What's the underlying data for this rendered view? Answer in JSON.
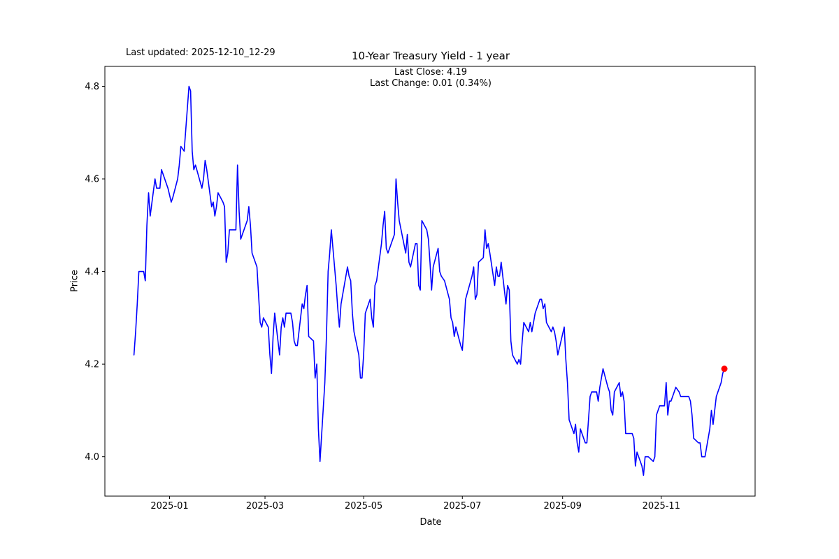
{
  "header": {
    "last_updated": "Last updated: 2025-12-10_12-29",
    "title": "10-Year Treasury Yield - 1 year",
    "subtitle_line1": "Last Close: 4.19",
    "subtitle_line2": "Last Change: 0.01 (0.34%)"
  },
  "chart_data": {
    "type": "line",
    "title": "10-Year Treasury Yield - 1 year",
    "xlabel": "Date",
    "ylabel": "Price",
    "legend": "none",
    "grid": false,
    "line_color": "#0000ff",
    "marker_color": "#ff0000",
    "spine_color": "#000000",
    "ylim": [
      3.915,
      4.843
    ],
    "xlim": [
      "2024-11-22",
      "2025-12-29"
    ],
    "yticks": [
      {
        "label": "4.0",
        "value": 4.0
      },
      {
        "label": "4.2",
        "value": 4.2
      },
      {
        "label": "4.4",
        "value": 4.4
      },
      {
        "label": "4.6",
        "value": 4.6
      },
      {
        "label": "4.8",
        "value": 4.8
      }
    ],
    "xticks": [
      {
        "label": "2025-01",
        "date": "2025-01-01"
      },
      {
        "label": "2025-03",
        "date": "2025-03-01"
      },
      {
        "label": "2025-05",
        "date": "2025-05-01"
      },
      {
        "label": "2025-07",
        "date": "2025-07-01"
      },
      {
        "label": "2025-09",
        "date": "2025-09-01"
      },
      {
        "label": "2025-11",
        "date": "2025-11-01"
      }
    ],
    "last_point": {
      "date": "2025-12-10",
      "value": 4.19
    },
    "series": [
      {
        "name": "10-Year Treasury Yield",
        "points": [
          [
            "2024-12-10",
            4.22
          ],
          [
            "2024-12-11",
            4.27
          ],
          [
            "2024-12-12",
            4.33
          ],
          [
            "2024-12-13",
            4.4
          ],
          [
            "2024-12-16",
            4.4
          ],
          [
            "2024-12-17",
            4.38
          ],
          [
            "2024-12-18",
            4.5
          ],
          [
            "2024-12-19",
            4.57
          ],
          [
            "2024-12-20",
            4.52
          ],
          [
            "2024-12-23",
            4.6
          ],
          [
            "2024-12-24",
            4.58
          ],
          [
            "2024-12-26",
            4.58
          ],
          [
            "2024-12-27",
            4.62
          ],
          [
            "2024-12-30",
            4.59
          ],
          [
            "2024-12-31",
            4.58
          ],
          [
            "2025-01-02",
            4.55
          ],
          [
            "2025-01-03",
            4.56
          ],
          [
            "2025-01-06",
            4.6
          ],
          [
            "2025-01-07",
            4.63
          ],
          [
            "2025-01-08",
            4.67
          ],
          [
            "2025-01-10",
            4.66
          ],
          [
            "2025-01-13",
            4.8
          ],
          [
            "2025-01-14",
            4.79
          ],
          [
            "2025-01-15",
            4.66
          ],
          [
            "2025-01-16",
            4.62
          ],
          [
            "2025-01-17",
            4.63
          ],
          [
            "2025-01-21",
            4.58
          ],
          [
            "2025-01-22",
            4.6
          ],
          [
            "2025-01-23",
            4.64
          ],
          [
            "2025-01-24",
            4.62
          ],
          [
            "2025-01-27",
            4.54
          ],
          [
            "2025-01-28",
            4.55
          ],
          [
            "2025-01-29",
            4.52
          ],
          [
            "2025-01-30",
            4.54
          ],
          [
            "2025-01-31",
            4.57
          ],
          [
            "2025-02-03",
            4.55
          ],
          [
            "2025-02-04",
            4.54
          ],
          [
            "2025-02-05",
            4.42
          ],
          [
            "2025-02-06",
            4.44
          ],
          [
            "2025-02-07",
            4.49
          ],
          [
            "2025-02-10",
            4.49
          ],
          [
            "2025-02-11",
            4.49
          ],
          [
            "2025-02-12",
            4.63
          ],
          [
            "2025-02-13",
            4.53
          ],
          [
            "2025-02-14",
            4.47
          ],
          [
            "2025-02-18",
            4.51
          ],
          [
            "2025-02-19",
            4.54
          ],
          [
            "2025-02-20",
            4.5
          ],
          [
            "2025-02-21",
            4.44
          ],
          [
            "2025-02-24",
            4.41
          ],
          [
            "2025-02-25",
            4.35
          ],
          [
            "2025-02-26",
            4.29
          ],
          [
            "2025-02-27",
            4.28
          ],
          [
            "2025-02-28",
            4.3
          ],
          [
            "2025-03-03",
            4.28
          ],
          [
            "2025-03-04",
            4.22
          ],
          [
            "2025-03-05",
            4.18
          ],
          [
            "2025-03-06",
            4.26
          ],
          [
            "2025-03-07",
            4.31
          ],
          [
            "2025-03-10",
            4.22
          ],
          [
            "2025-03-11",
            4.28
          ],
          [
            "2025-03-12",
            4.3
          ],
          [
            "2025-03-13",
            4.28
          ],
          [
            "2025-03-14",
            4.31
          ],
          [
            "2025-03-17",
            4.31
          ],
          [
            "2025-03-18",
            4.29
          ],
          [
            "2025-03-19",
            4.25
          ],
          [
            "2025-03-20",
            4.24
          ],
          [
            "2025-03-21",
            4.24
          ],
          [
            "2025-03-24",
            4.33
          ],
          [
            "2025-03-25",
            4.32
          ],
          [
            "2025-03-26",
            4.35
          ],
          [
            "2025-03-27",
            4.37
          ],
          [
            "2025-03-28",
            4.26
          ],
          [
            "2025-03-31",
            4.25
          ],
          [
            "2025-04-01",
            4.17
          ],
          [
            "2025-04-02",
            4.2
          ],
          [
            "2025-04-03",
            4.06
          ],
          [
            "2025-04-04",
            3.99
          ],
          [
            "2025-04-07",
            4.16
          ],
          [
            "2025-04-08",
            4.26
          ],
          [
            "2025-04-09",
            4.4
          ],
          [
            "2025-04-10",
            4.44
          ],
          [
            "2025-04-11",
            4.49
          ],
          [
            "2025-04-14",
            4.37
          ],
          [
            "2025-04-15",
            4.32
          ],
          [
            "2025-04-16",
            4.28
          ],
          [
            "2025-04-17",
            4.33
          ],
          [
            "2025-04-21",
            4.41
          ],
          [
            "2025-04-22",
            4.39
          ],
          [
            "2025-04-23",
            4.38
          ],
          [
            "2025-04-24",
            4.31
          ],
          [
            "2025-04-25",
            4.27
          ],
          [
            "2025-04-28",
            4.22
          ],
          [
            "2025-04-29",
            4.17
          ],
          [
            "2025-04-30",
            4.17
          ],
          [
            "2025-05-01",
            4.22
          ],
          [
            "2025-05-02",
            4.31
          ],
          [
            "2025-05-05",
            4.34
          ],
          [
            "2025-05-06",
            4.3
          ],
          [
            "2025-05-07",
            4.28
          ],
          [
            "2025-05-08",
            4.37
          ],
          [
            "2025-05-09",
            4.38
          ],
          [
            "2025-05-12",
            4.46
          ],
          [
            "2025-05-13",
            4.5
          ],
          [
            "2025-05-14",
            4.53
          ],
          [
            "2025-05-15",
            4.45
          ],
          [
            "2025-05-16",
            4.44
          ],
          [
            "2025-05-19",
            4.47
          ],
          [
            "2025-05-20",
            4.48
          ],
          [
            "2025-05-21",
            4.6
          ],
          [
            "2025-05-22",
            4.55
          ],
          [
            "2025-05-23",
            4.51
          ],
          [
            "2025-05-27",
            4.44
          ],
          [
            "2025-05-28",
            4.48
          ],
          [
            "2025-05-29",
            4.42
          ],
          [
            "2025-05-30",
            4.41
          ],
          [
            "2025-06-02",
            4.46
          ],
          [
            "2025-06-03",
            4.46
          ],
          [
            "2025-06-04",
            4.37
          ],
          [
            "2025-06-05",
            4.36
          ],
          [
            "2025-06-06",
            4.51
          ],
          [
            "2025-06-09",
            4.49
          ],
          [
            "2025-06-10",
            4.47
          ],
          [
            "2025-06-11",
            4.42
          ],
          [
            "2025-06-12",
            4.36
          ],
          [
            "2025-06-13",
            4.41
          ],
          [
            "2025-06-16",
            4.45
          ],
          [
            "2025-06-17",
            4.4
          ],
          [
            "2025-06-18",
            4.39
          ],
          [
            "2025-06-20",
            4.38
          ],
          [
            "2025-06-23",
            4.34
          ],
          [
            "2025-06-24",
            4.3
          ],
          [
            "2025-06-25",
            4.29
          ],
          [
            "2025-06-26",
            4.26
          ],
          [
            "2025-06-27",
            4.28
          ],
          [
            "2025-06-30",
            4.24
          ],
          [
            "2025-07-01",
            4.23
          ],
          [
            "2025-07-02",
            4.28
          ],
          [
            "2025-07-03",
            4.34
          ],
          [
            "2025-07-07",
            4.39
          ],
          [
            "2025-07-08",
            4.41
          ],
          [
            "2025-07-09",
            4.34
          ],
          [
            "2025-07-10",
            4.35
          ],
          [
            "2025-07-11",
            4.42
          ],
          [
            "2025-07-14",
            4.43
          ],
          [
            "2025-07-15",
            4.49
          ],
          [
            "2025-07-16",
            4.45
          ],
          [
            "2025-07-17",
            4.46
          ],
          [
            "2025-07-18",
            4.44
          ],
          [
            "2025-07-21",
            4.37
          ],
          [
            "2025-07-22",
            4.41
          ],
          [
            "2025-07-23",
            4.39
          ],
          [
            "2025-07-24",
            4.39
          ],
          [
            "2025-07-25",
            4.42
          ],
          [
            "2025-07-28",
            4.33
          ],
          [
            "2025-07-29",
            4.37
          ],
          [
            "2025-07-30",
            4.36
          ],
          [
            "2025-07-31",
            4.25
          ],
          [
            "2025-08-01",
            4.22
          ],
          [
            "2025-08-04",
            4.2
          ],
          [
            "2025-08-05",
            4.21
          ],
          [
            "2025-08-06",
            4.2
          ],
          [
            "2025-08-07",
            4.25
          ],
          [
            "2025-08-08",
            4.29
          ],
          [
            "2025-08-11",
            4.27
          ],
          [
            "2025-08-12",
            4.29
          ],
          [
            "2025-08-13",
            4.27
          ],
          [
            "2025-08-14",
            4.29
          ],
          [
            "2025-08-15",
            4.31
          ],
          [
            "2025-08-18",
            4.34
          ],
          [
            "2025-08-19",
            4.34
          ],
          [
            "2025-08-20",
            4.32
          ],
          [
            "2025-08-21",
            4.33
          ],
          [
            "2025-08-22",
            4.29
          ],
          [
            "2025-08-25",
            4.27
          ],
          [
            "2025-08-26",
            4.28
          ],
          [
            "2025-08-27",
            4.27
          ],
          [
            "2025-08-28",
            4.25
          ],
          [
            "2025-08-29",
            4.22
          ],
          [
            "2025-09-02",
            4.28
          ],
          [
            "2025-09-03",
            4.21
          ],
          [
            "2025-09-04",
            4.16
          ],
          [
            "2025-09-05",
            4.08
          ],
          [
            "2025-09-08",
            4.05
          ],
          [
            "2025-09-09",
            4.07
          ],
          [
            "2025-09-10",
            4.03
          ],
          [
            "2025-09-11",
            4.01
          ],
          [
            "2025-09-12",
            4.06
          ],
          [
            "2025-09-15",
            4.03
          ],
          [
            "2025-09-16",
            4.03
          ],
          [
            "2025-09-17",
            4.08
          ],
          [
            "2025-09-18",
            4.13
          ],
          [
            "2025-09-19",
            4.14
          ],
          [
            "2025-09-22",
            4.14
          ],
          [
            "2025-09-23",
            4.12
          ],
          [
            "2025-09-24",
            4.15
          ],
          [
            "2025-09-25",
            4.17
          ],
          [
            "2025-09-26",
            4.19
          ],
          [
            "2025-09-29",
            4.15
          ],
          [
            "2025-09-30",
            4.14
          ],
          [
            "2025-10-01",
            4.1
          ],
          [
            "2025-10-02",
            4.09
          ],
          [
            "2025-10-03",
            4.14
          ],
          [
            "2025-10-06",
            4.16
          ],
          [
            "2025-10-07",
            4.13
          ],
          [
            "2025-10-08",
            4.14
          ],
          [
            "2025-10-09",
            4.12
          ],
          [
            "2025-10-10",
            4.05
          ],
          [
            "2025-10-14",
            4.05
          ],
          [
            "2025-10-15",
            4.04
          ],
          [
            "2025-10-16",
            3.98
          ],
          [
            "2025-10-17",
            4.01
          ],
          [
            "2025-10-20",
            3.98
          ],
          [
            "2025-10-21",
            3.96
          ],
          [
            "2025-10-22",
            4.0
          ],
          [
            "2025-10-23",
            4.0
          ],
          [
            "2025-10-24",
            4.0
          ],
          [
            "2025-10-27",
            3.99
          ],
          [
            "2025-10-28",
            4.0
          ],
          [
            "2025-10-29",
            4.09
          ],
          [
            "2025-10-30",
            4.1
          ],
          [
            "2025-10-31",
            4.11
          ],
          [
            "2025-11-03",
            4.11
          ],
          [
            "2025-11-04",
            4.16
          ],
          [
            "2025-11-05",
            4.09
          ],
          [
            "2025-11-06",
            4.12
          ],
          [
            "2025-11-07",
            4.12
          ],
          [
            "2025-11-10",
            4.15
          ],
          [
            "2025-11-12",
            4.14
          ],
          [
            "2025-11-13",
            4.13
          ],
          [
            "2025-11-14",
            4.13
          ],
          [
            "2025-11-17",
            4.13
          ],
          [
            "2025-11-18",
            4.13
          ],
          [
            "2025-11-19",
            4.12
          ],
          [
            "2025-11-20",
            4.09
          ],
          [
            "2025-11-21",
            4.04
          ],
          [
            "2025-11-24",
            4.03
          ],
          [
            "2025-11-25",
            4.03
          ],
          [
            "2025-11-26",
            4.0
          ],
          [
            "2025-11-28",
            4.0
          ],
          [
            "2025-12-01",
            4.06
          ],
          [
            "2025-12-02",
            4.1
          ],
          [
            "2025-12-03",
            4.07
          ],
          [
            "2025-12-04",
            4.1
          ],
          [
            "2025-12-05",
            4.13
          ],
          [
            "2025-12-08",
            4.16
          ],
          [
            "2025-12-09",
            4.18
          ],
          [
            "2025-12-10",
            4.19
          ]
        ]
      }
    ]
  }
}
